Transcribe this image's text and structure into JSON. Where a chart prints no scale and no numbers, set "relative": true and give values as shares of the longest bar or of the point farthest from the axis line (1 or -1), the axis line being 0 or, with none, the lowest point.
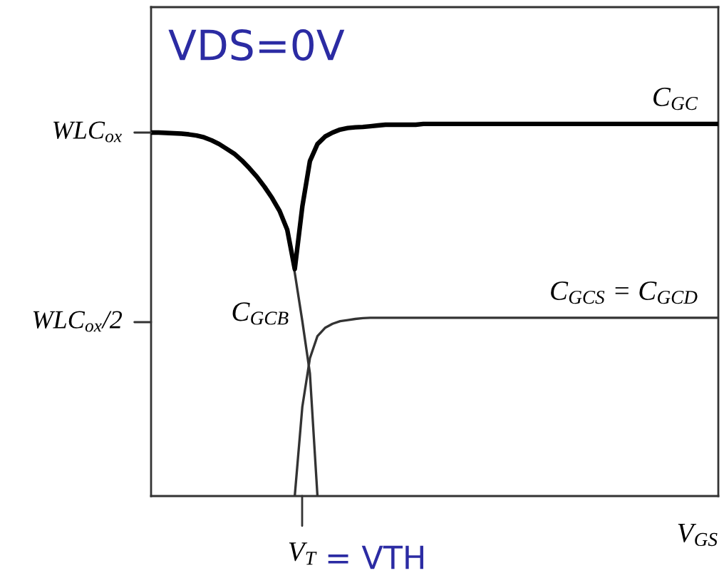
{
  "chart_data": {
    "type": "line",
    "relative": true,
    "xlabel": "V$_{GS}$",
    "categories": [
      null,
      null,
      null,
      null,
      null,
      null,
      null,
      null,
      null,
      null,
      null,
      null,
      null,
      null,
      null,
      null,
      null,
      null,
      null,
      null,
      null,
      null,
      null,
      null,
      null,
      null,
      null,
      null,
      null,
      null,
      null,
      null,
      null,
      null,
      null,
      null,
      null,
      null,
      null,
      null,
      null,
      null,
      null,
      null,
      null,
      null,
      null,
      null,
      null,
      null,
      null,
      null,
      null,
      null,
      null,
      null,
      null,
      null,
      null,
      null,
      null,
      null,
      null,
      null,
      null,
      null,
      null,
      null,
      null,
      null,
      null,
      null,
      null,
      null,
      null,
      null
    ],
    "annotations": [
      "VDS=0V",
      "WLC$_{ox}$",
      "WLC$_{ox}$/2",
      "V$_{T}$",
      "= VTH"
    ],
    "series": [
      {
        "name": "C$_{GC}$",
        "color": "#000000",
        "values": [
          0.977,
          0.977,
          0.976,
          0.975,
          0.974,
          0.972,
          0.969,
          0.964,
          0.956,
          0.946,
          0.933,
          0.92,
          0.902,
          0.881,
          0.858,
          0.831,
          0.801,
          0.766,
          0.716,
          0.61,
          0.778,
          0.9,
          0.946,
          0.966,
          0.977,
          0.985,
          0.989,
          0.991,
          0.992,
          0.994,
          0.996,
          0.998,
          0.998,
          0.998,
          0.998,
          0.998,
          1,
          1,
          1,
          1,
          1,
          1,
          1,
          1,
          1,
          1,
          1,
          1,
          1,
          1,
          1,
          1,
          1,
          1,
          1,
          1,
          1,
          1,
          1,
          1,
          1,
          1,
          1,
          1,
          1,
          1,
          1,
          1,
          1,
          1,
          1,
          1,
          1,
          1,
          1,
          1
        ]
      },
      {
        "name": "C$_{GCB}$",
        "color": "#333333",
        "values": [
          0.977,
          0.977,
          0.976,
          0.975,
          0.974,
          0.972,
          0.969,
          0.964,
          0.956,
          0.946,
          0.933,
          0.92,
          0.902,
          0.881,
          0.858,
          0.831,
          0.801,
          0.766,
          0.71,
          0.6,
          0.47,
          0.33,
          0,
          null,
          null,
          null,
          null,
          null,
          null,
          null,
          null,
          null,
          null,
          null,
          null,
          null,
          null,
          null,
          null,
          null,
          null,
          null,
          null,
          null,
          null,
          null,
          null,
          null,
          null,
          null,
          null,
          null,
          null,
          null,
          null,
          null,
          null,
          null,
          null,
          null,
          null,
          null,
          null,
          null,
          null,
          null,
          null,
          null,
          null,
          null,
          null,
          null,
          null,
          null,
          null,
          null
        ]
      },
      {
        "name": "C$_{GCS}$ = C$_{GCD}$",
        "color": "#333333",
        "values": [
          null,
          null,
          null,
          null,
          null,
          null,
          null,
          null,
          null,
          null,
          null,
          null,
          null,
          null,
          null,
          null,
          null,
          null,
          null,
          0,
          0.24,
          0.37,
          0.43,
          0.452,
          0.463,
          0.47,
          0.473,
          0.476,
          0.478,
          0.479,
          0.479,
          0.479,
          0.479,
          0.479,
          0.479,
          0.479,
          0.479,
          0.479,
          0.479,
          0.479,
          0.479,
          0.479,
          0.479,
          0.479,
          0.479,
          0.479,
          0.479,
          0.479,
          0.479,
          0.479,
          0.479,
          0.479,
          0.479,
          0.479,
          0.479,
          0.479,
          0.479,
          0.479,
          0.479,
          0.479,
          0.479,
          0.479,
          0.479,
          0.479,
          0.479,
          0.479,
          0.479,
          0.479,
          0.479,
          0.479,
          0.479,
          0.479,
          0.479,
          0.479,
          0.479,
          0.479
        ]
      }
    ]
  }
}
